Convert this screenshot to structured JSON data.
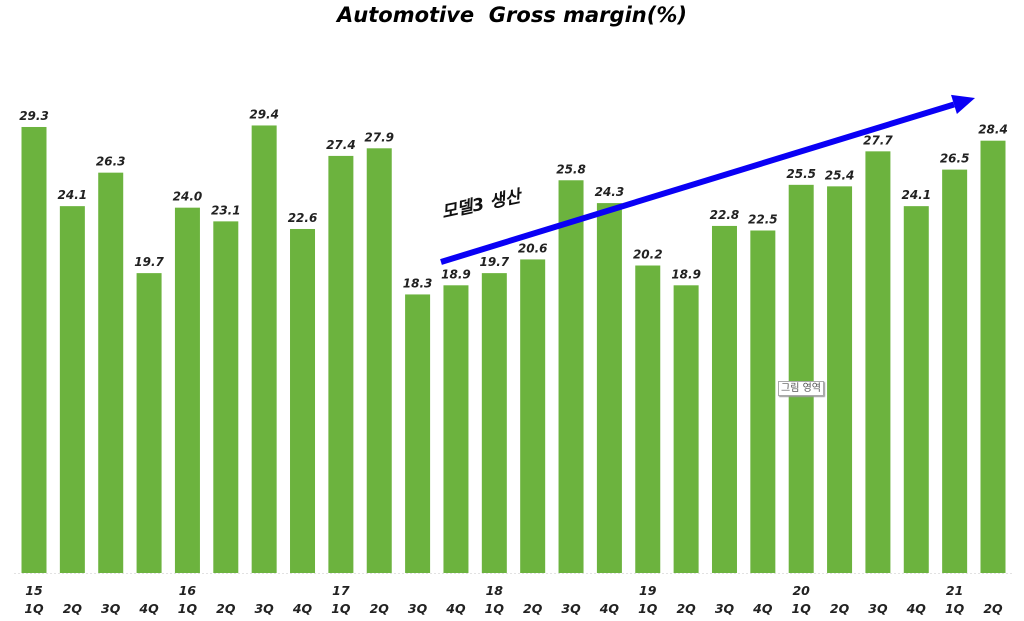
{
  "chart_data": {
    "type": "bar",
    "title": "Automotive  Gross margin(%)",
    "categories": [
      "15 1Q",
      "2Q",
      "3Q",
      "4Q",
      "16 1Q",
      "2Q",
      "3Q",
      "4Q",
      "17 1Q",
      "2Q",
      "3Q",
      "4Q",
      "18 1Q",
      "2Q",
      "3Q",
      "4Q",
      "19 1Q",
      "2Q",
      "3Q",
      "4Q",
      "20 1Q",
      "2Q",
      "3Q",
      "4Q",
      "21 1Q",
      "2Q"
    ],
    "tick_quarters": [
      "1Q",
      "2Q",
      "3Q",
      "4Q",
      "1Q",
      "2Q",
      "3Q",
      "4Q",
      "1Q",
      "2Q",
      "3Q",
      "4Q",
      "1Q",
      "2Q",
      "3Q",
      "4Q",
      "1Q",
      "2Q",
      "3Q",
      "4Q",
      "1Q",
      "2Q",
      "3Q",
      "4Q",
      "1Q",
      "2Q"
    ],
    "tick_years": [
      "15",
      "",
      "",
      "",
      "16",
      "",
      "",
      "",
      "17",
      "",
      "",
      "",
      "18",
      "",
      "",
      "",
      "19",
      "",
      "",
      "",
      "20",
      "",
      "",
      "",
      "21",
      ""
    ],
    "values": [
      29.3,
      24.1,
      26.3,
      19.7,
      24.0,
      23.1,
      29.4,
      22.6,
      27.4,
      27.9,
      18.3,
      18.9,
      19.7,
      20.6,
      25.8,
      24.3,
      20.2,
      18.9,
      22.8,
      22.5,
      25.5,
      25.4,
      27.7,
      24.1,
      26.5,
      28.4
    ],
    "data_labels": [
      "29.3",
      "24.1",
      "26.3",
      "19.7",
      "24.0",
      "23.1",
      "29.4",
      "22.6",
      "27.4",
      "27.9",
      "18.3",
      "18.9",
      "19.7",
      "20.6",
      "25.8",
      "24.3",
      "20.2",
      "18.9",
      "22.8",
      "22.5",
      "25.5",
      "25.4",
      "27.7",
      "24.1",
      "26.5",
      "28.4"
    ],
    "ylim": [
      0,
      36
    ],
    "grid": false,
    "legend": "none",
    "bar_color": "#6cb33e",
    "arrow_color": "#0a00f5",
    "annotation": "모델3 생산",
    "annotation_arrow_from_category": "17 4Q",
    "xlabel": "",
    "ylabel": ""
  },
  "tooltip": "그림 영역"
}
